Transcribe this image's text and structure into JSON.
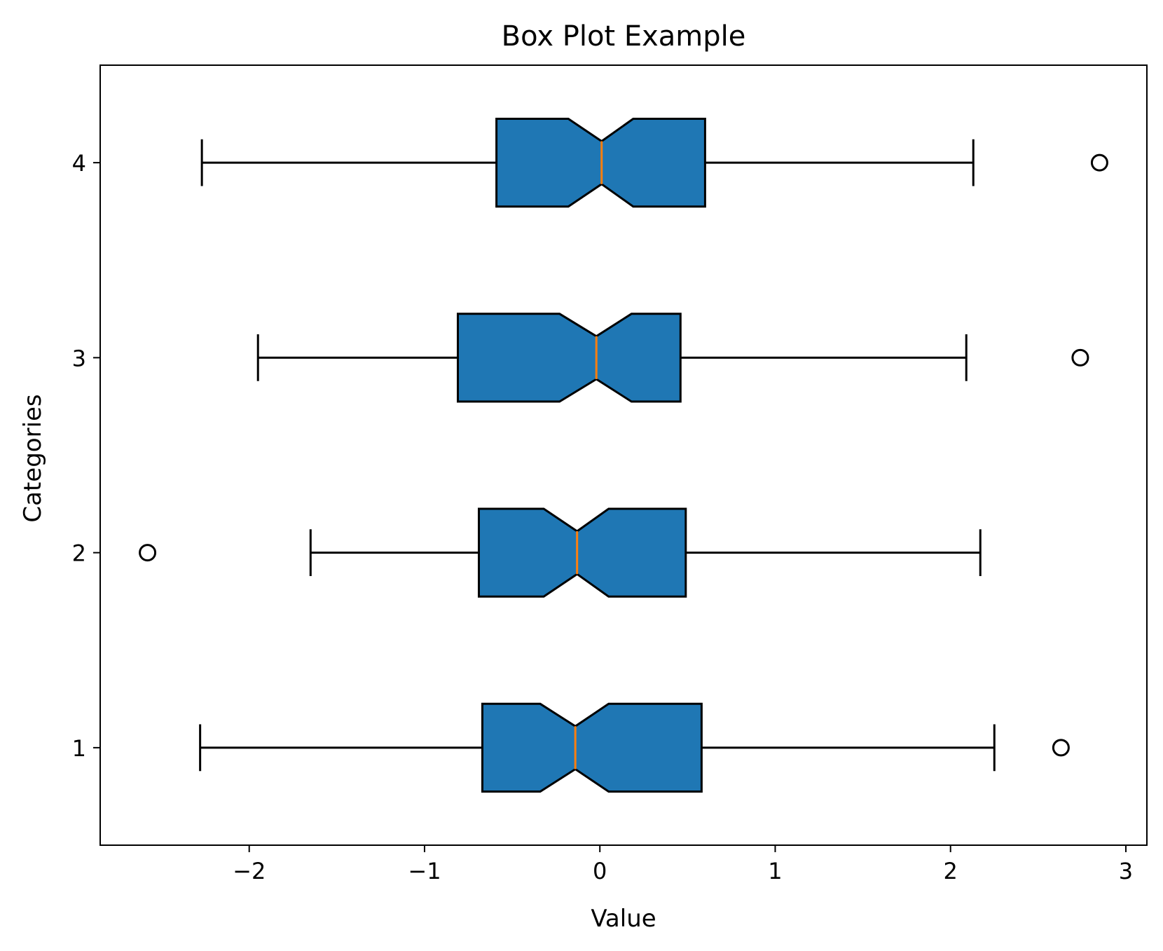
{
  "chart_data": {
    "type": "boxplot",
    "orientation": "horizontal",
    "notched": true,
    "title": "Box Plot Example",
    "xlabel": "Value",
    "ylabel": "Categories",
    "xlim": [
      -2.85,
      3.12
    ],
    "ylim": [
      0.5,
      4.5
    ],
    "xticks": [
      {
        "value": -2,
        "label": "−2"
      },
      {
        "value": -1,
        "label": "−1"
      },
      {
        "value": 0,
        "label": "0"
      },
      {
        "value": 1,
        "label": "1"
      },
      {
        "value": 2,
        "label": "2"
      },
      {
        "value": 3,
        "label": "3"
      }
    ],
    "categories": [
      "1",
      "2",
      "3",
      "4"
    ],
    "boxes": [
      {
        "category": "1",
        "whisker_low": -2.28,
        "q1": -0.67,
        "notch_low": -0.34,
        "median": -0.14,
        "notch_high": 0.05,
        "q3": 0.58,
        "whisker_high": 2.25,
        "outliers": [
          2.63
        ]
      },
      {
        "category": "2",
        "whisker_low": -1.65,
        "q1": -0.69,
        "notch_low": -0.32,
        "median": -0.13,
        "notch_high": 0.05,
        "q3": 0.49,
        "whisker_high": 2.17,
        "outliers": [
          -2.58
        ]
      },
      {
        "category": "3",
        "whisker_low": -1.95,
        "q1": -0.81,
        "notch_low": -0.23,
        "median": -0.02,
        "notch_high": 0.18,
        "q3": 0.46,
        "whisker_high": 2.09,
        "outliers": [
          2.74
        ]
      },
      {
        "category": "4",
        "whisker_low": -2.27,
        "q1": -0.59,
        "notch_low": -0.18,
        "median": 0.01,
        "notch_high": 0.19,
        "q3": 0.6,
        "whisker_high": 2.13,
        "outliers": [
          2.85
        ]
      }
    ],
    "grid": false,
    "legend": "none",
    "colors": {
      "box_fill": "#1f77b4",
      "box_edge": "#000000",
      "median": "#ff7f0e",
      "whisker": "#000000",
      "outlier_edge": "#000000"
    }
  }
}
